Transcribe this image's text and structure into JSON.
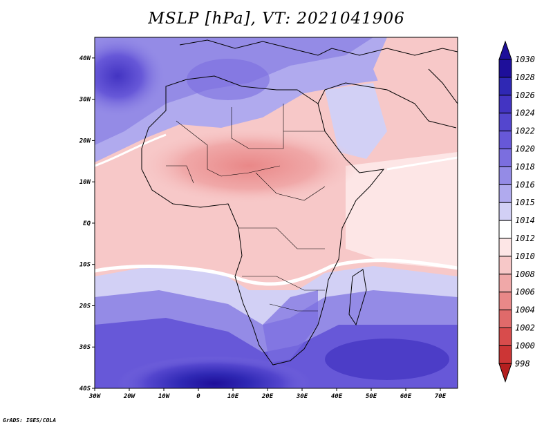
{
  "title": "MSLP [hPa], VT: 2021041906",
  "credit": "GrADS: IGES/COLA",
  "map": {
    "lon_range": [
      -30,
      75
    ],
    "lat_range": [
      -40,
      45
    ],
    "lon_ticks": [
      "30W",
      "20W",
      "10W",
      "0",
      "10E",
      "20E",
      "30E",
      "40E",
      "50E",
      "60E",
      "70E"
    ],
    "lat_ticks": [
      "40N",
      "30N",
      "20N",
      "10N",
      "EQ",
      "10S",
      "20S",
      "30S",
      "40S"
    ]
  },
  "colorbar": {
    "labels": [
      "1030",
      "1028",
      "1026",
      "1024",
      "1022",
      "1020",
      "1018",
      "1016",
      "1015",
      "1014",
      "1012",
      "1010",
      "1008",
      "1006",
      "1004",
      "1002",
      "1000",
      "998"
    ],
    "colors": [
      "#1e0f9a",
      "#2f28b4",
      "#4334c2",
      "#5446ce",
      "#6758d8",
      "#7b6edf",
      "#948be6",
      "#b0aaee",
      "#d2d0f5",
      "#ffffff",
      "#fde6e6",
      "#f7c8c8",
      "#f0a8a8",
      "#e98888",
      "#e06a6a",
      "#d84c4c",
      "#cc3535",
      "#b51f1f"
    ]
  }
}
